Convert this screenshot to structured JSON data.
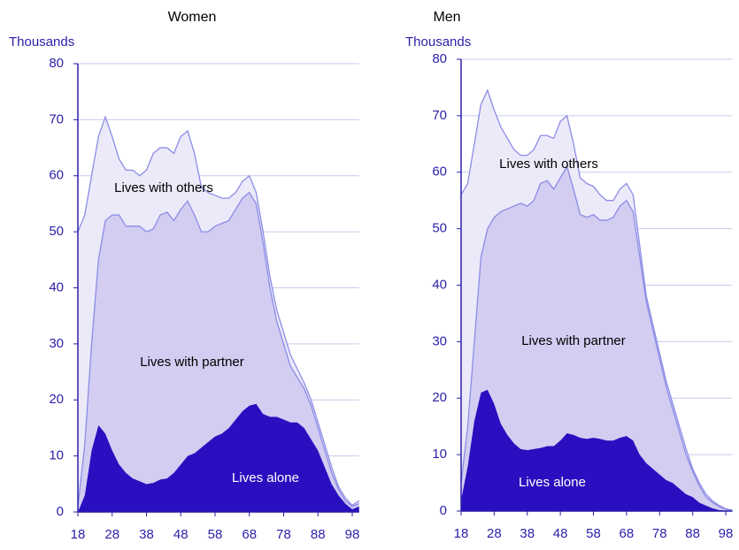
{
  "chart_data": [
    {
      "type": "area",
      "title": "Women",
      "y_label": "Thousands",
      "x": [
        18,
        20,
        22,
        24,
        26,
        28,
        30,
        32,
        34,
        36,
        38,
        40,
        42,
        44,
        46,
        48,
        50,
        52,
        54,
        56,
        58,
        60,
        62,
        64,
        66,
        68,
        70,
        72,
        74,
        76,
        78,
        80,
        82,
        84,
        86,
        88,
        90,
        92,
        94,
        96,
        98,
        100
      ],
      "series": [
        {
          "name": "Lives alone",
          "color": "#2a0fc0",
          "label_color": "#ffffff",
          "values": [
            0,
            3,
            11,
            15.5,
            14,
            11,
            8.5,
            7,
            6,
            5.5,
            5,
            5.2,
            5.8,
            6,
            7,
            8.5,
            10,
            10.5,
            11.5,
            12.5,
            13.5,
            14,
            15,
            16.5,
            18,
            19,
            19.3,
            17.5,
            17,
            17,
            16.5,
            16,
            16,
            15,
            13,
            11,
            8,
            5,
            3,
            1.5,
            0.5,
            1
          ]
        },
        {
          "name": "Lives with partner",
          "color": "#d2cdf1",
          "label_color": "#000000",
          "values": [
            1,
            9,
            19,
            29.5,
            38,
            42,
            44.5,
            44,
            45,
            45.5,
            45,
            45.3,
            47.2,
            47.5,
            45,
            45.5,
            45.5,
            42.5,
            38.5,
            37.5,
            37.5,
            37.5,
            37,
            37.5,
            38,
            38,
            35.7,
            30.5,
            23,
            17,
            13.5,
            10,
            8,
            7,
            6,
            4,
            3,
            2,
            1,
            0.5,
            0.5,
            0.5
          ]
        },
        {
          "name": "Lives with others",
          "color": "#eceaf9",
          "label_color": "#000000",
          "values": [
            49,
            41,
            30,
            22,
            18.5,
            14,
            10,
            10,
            10,
            9,
            11,
            13.5,
            12,
            11.5,
            12,
            13,
            12.5,
            11,
            8,
            7,
            5.5,
            4.5,
            4,
            3,
            3,
            3,
            2,
            2,
            2,
            2,
            2,
            2,
            1.5,
            1,
            1,
            1,
            1,
            1,
            0.5,
            0.5,
            0.2,
            0.5
          ]
        }
      ],
      "xlim": [
        18,
        100
      ],
      "xticks": [
        18,
        28,
        38,
        48,
        58,
        68,
        78,
        88,
        98
      ],
      "ylim": [
        0,
        80
      ],
      "yticks": [
        0,
        10,
        20,
        30,
        40,
        50,
        60,
        70,
        80
      ],
      "grid": true
    },
    {
      "type": "area",
      "title": "Men",
      "y_label": "Thousands",
      "x": [
        18,
        20,
        22,
        24,
        26,
        28,
        30,
        32,
        34,
        36,
        38,
        40,
        42,
        44,
        46,
        48,
        50,
        52,
        54,
        56,
        58,
        60,
        62,
        64,
        66,
        68,
        70,
        72,
        74,
        76,
        78,
        80,
        82,
        84,
        86,
        88,
        90,
        92,
        94,
        96,
        98,
        100
      ],
      "series": [
        {
          "name": "Lives alone",
          "color": "#2a0fc0",
          "label_color": "#ffffff",
          "values": [
            2,
            8,
            16,
            21,
            21.5,
            19,
            15.5,
            13.5,
            12,
            11,
            10.8,
            11,
            11.2,
            11.5,
            11.5,
            12.5,
            13.8,
            13.5,
            13,
            12.8,
            13,
            12.8,
            12.5,
            12.5,
            13,
            13.3,
            12.5,
            10,
            8.5,
            7.5,
            6.5,
            5.5,
            5,
            4,
            3,
            2.5,
            1.5,
            1,
            0.5,
            0.2,
            0.1,
            0
          ]
        },
        {
          "name": "Lives with partner",
          "color": "#d2cdf1",
          "label_color": "#000000",
          "values": [
            3,
            7,
            14,
            24,
            28.5,
            33,
            37.5,
            40,
            42,
            43.5,
            43.2,
            44,
            46.8,
            47,
            45.5,
            46.5,
            47.2,
            43.5,
            39.5,
            39.2,
            39.5,
            38.7,
            39,
            39.5,
            41,
            41.7,
            40.5,
            35,
            28.5,
            24.5,
            20.5,
            16.5,
            13,
            10,
            7,
            4.5,
            3,
            1.5,
            1,
            0.6,
            0.2,
            0.1
          ]
        },
        {
          "name": "Lives with others",
          "color": "#eceaf9",
          "label_color": "#000000",
          "values": [
            51,
            43,
            35,
            27,
            24.5,
            19,
            15,
            12.5,
            10,
            8.5,
            9,
            9,
            8.5,
            8,
            9,
            10,
            9,
            8,
            6.5,
            6,
            5,
            4.5,
            3.5,
            3,
            3,
            3,
            3,
            2,
            1,
            1,
            1,
            1,
            1,
            1,
            1,
            0.5,
            0.5,
            0.5,
            0.3,
            0.2,
            0.1,
            0.1
          ]
        }
      ],
      "xlim": [
        18,
        100
      ],
      "xticks": [
        18,
        28,
        38,
        48,
        58,
        68,
        78,
        88,
        98
      ],
      "ylim": [
        0,
        80
      ],
      "yticks": [
        0,
        10,
        20,
        30,
        40,
        50,
        60,
        70,
        80
      ],
      "grid": true
    }
  ]
}
